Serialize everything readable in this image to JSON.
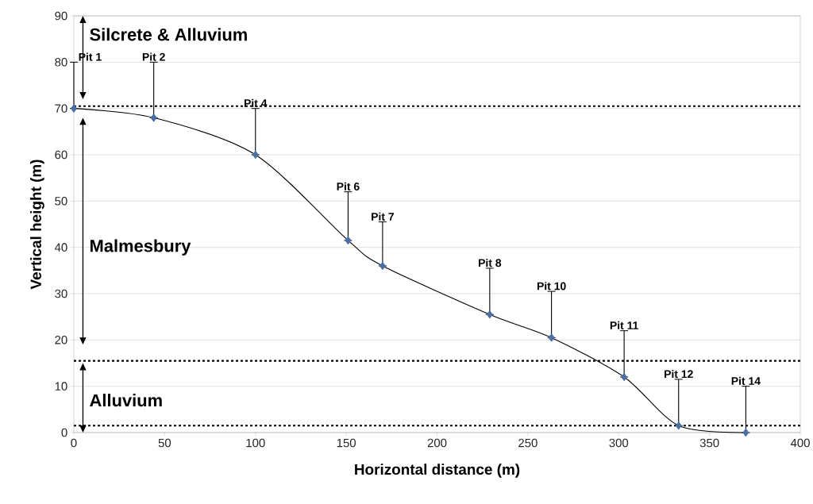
{
  "chart_data": {
    "type": "line",
    "xlabel": "Horizontal distance (m)",
    "ylabel": "Vertical height (m)",
    "x": [
      0,
      44,
      100,
      151,
      170,
      229,
      263,
      303,
      333,
      370
    ],
    "series": [
      {
        "color": "#4a6fa5",
        "values": [
          70,
          68,
          60,
          41.5,
          36,
          25.5,
          20.5,
          12,
          1.5,
          0
        ],
        "errors": [
          [
            70,
            80
          ],
          [
            68,
            80
          ],
          [
            60,
            70
          ],
          [
            41.5,
            52
          ],
          [
            36,
            45.5
          ],
          [
            25.5,
            35.5
          ],
          [
            20.5,
            30.5
          ],
          [
            12,
            22
          ],
          [
            1.5,
            11.5
          ],
          [
            0,
            10
          ]
        ]
      }
    ],
    "xlim": [
      0,
      400
    ],
    "xticks": [
      0,
      50,
      100,
      150,
      200,
      250,
      300,
      350,
      400
    ],
    "ylim": [
      0,
      90
    ],
    "yticks": [
      0,
      10,
      20,
      30,
      40,
      50,
      60,
      70,
      80,
      90
    ],
    "grid": "y",
    "marker": "diamond",
    "line_style": "solid",
    "ref_lines": [
      {
        "axis": "y",
        "value": 70.5,
        "line_style": "dotted"
      },
      {
        "axis": "y",
        "value": 15.5,
        "line_style": "dotted"
      },
      {
        "axis": "y",
        "value": 1.5,
        "line_style": "dotted"
      }
    ],
    "annotations": [
      "Silcrete & Alluvium",
      "Malmesbury",
      "Alluvium",
      "Pit 1",
      "Pit 2",
      "Pit 4",
      "Pit 6",
      "Pit 7",
      "Pit 8",
      "Pit 10",
      "Pit 11",
      "Pit 12",
      "Pit 14"
    ]
  }
}
